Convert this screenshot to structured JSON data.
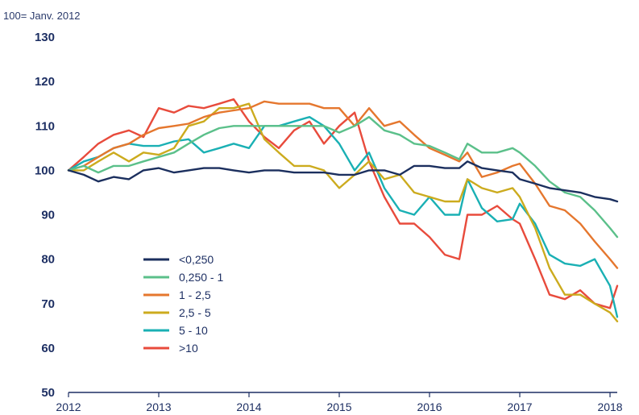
{
  "chart_data": {
    "type": "line",
    "unit_note": "100= Janv. 2012",
    "ylim": [
      50,
      130
    ],
    "yticks": [
      50,
      60,
      70,
      80,
      90,
      100,
      110,
      120,
      130
    ],
    "xlim": [
      2012,
      2018.08
    ],
    "xticks": [
      "2012",
      "2013",
      "2014",
      "2015",
      "2016",
      "2017",
      "2018"
    ],
    "grid": false,
    "legend_position": "bottom-left",
    "series": [
      {
        "name": "<0,250",
        "color": "#1b2f5e",
        "x": [
          2012,
          2012.17,
          2012.33,
          2012.5,
          2012.67,
          2012.83,
          2013,
          2013.17,
          2013.33,
          2013.5,
          2013.67,
          2013.83,
          2014,
          2014.17,
          2014.33,
          2014.5,
          2014.67,
          2014.83,
          2015,
          2015.17,
          2015.33,
          2015.5,
          2015.67,
          2015.83,
          2016,
          2016.17,
          2016.33,
          2016.42,
          2016.58,
          2016.75,
          2016.92,
          2017,
          2017.17,
          2017.33,
          2017.5,
          2017.67,
          2017.83,
          2018,
          2018.08
        ],
        "y": [
          100,
          99,
          97.5,
          98.5,
          98,
          100,
          100.5,
          99.5,
          100,
          100.5,
          100.5,
          100,
          99.5,
          100,
          100,
          99.5,
          99.5,
          99.5,
          99,
          99,
          100,
          100,
          99,
          101,
          101,
          100.5,
          100.5,
          102,
          100.5,
          100,
          99.5,
          98,
          97,
          96,
          95.5,
          95,
          94,
          93.5,
          93
        ]
      },
      {
        "name": "0,250  - 1",
        "color": "#5bc08a",
        "x": [
          2012,
          2012.17,
          2012.33,
          2012.5,
          2012.67,
          2012.83,
          2013,
          2013.17,
          2013.33,
          2013.5,
          2013.67,
          2013.83,
          2014,
          2014.17,
          2014.33,
          2014.5,
          2014.67,
          2014.83,
          2015,
          2015.17,
          2015.33,
          2015.5,
          2015.67,
          2015.83,
          2016,
          2016.17,
          2016.33,
          2016.42,
          2016.58,
          2016.75,
          2016.92,
          2017,
          2017.17,
          2017.33,
          2017.5,
          2017.67,
          2017.83,
          2018,
          2018.08
        ],
        "y": [
          100,
          101,
          99.5,
          101,
          101,
          102,
          103,
          104,
          106,
          108,
          109.5,
          110,
          110,
          110,
          110,
          110,
          110,
          110,
          108.5,
          110,
          112,
          109,
          108,
          106,
          105.5,
          104,
          102.5,
          106,
          104,
          104,
          105,
          104,
          101,
          97.5,
          95,
          94,
          91,
          87,
          85
        ]
      },
      {
        "name": "1 - 2,5",
        "color": "#e5772e",
        "x": [
          2012,
          2012.17,
          2012.33,
          2012.5,
          2012.67,
          2012.83,
          2013,
          2013.17,
          2013.33,
          2013.5,
          2013.67,
          2013.83,
          2014,
          2014.17,
          2014.33,
          2014.5,
          2014.67,
          2014.83,
          2015,
          2015.17,
          2015.33,
          2015.5,
          2015.67,
          2015.83,
          2016,
          2016.17,
          2016.33,
          2016.42,
          2016.58,
          2016.75,
          2016.92,
          2017,
          2017.17,
          2017.33,
          2017.5,
          2017.67,
          2017.83,
          2018,
          2018.08
        ],
        "y": [
          100,
          101,
          103,
          105,
          106,
          108,
          109.5,
          110,
          110.5,
          112,
          113,
          113.5,
          114,
          115.5,
          115,
          115,
          115,
          114,
          114,
          110,
          114,
          110,
          111,
          108,
          105,
          103.5,
          102,
          104,
          98.5,
          99.5,
          101,
          101.5,
          97,
          92,
          91,
          88,
          84,
          80,
          78
        ]
      },
      {
        "name": "2,5  - 5",
        "color": "#ccab1e",
        "x": [
          2012,
          2012.17,
          2012.33,
          2012.5,
          2012.67,
          2012.83,
          2013,
          2013.17,
          2013.33,
          2013.5,
          2013.67,
          2013.83,
          2014,
          2014.17,
          2014.33,
          2014.5,
          2014.67,
          2014.83,
          2015,
          2015.17,
          2015.33,
          2015.5,
          2015.67,
          2015.83,
          2016,
          2016.17,
          2016.33,
          2016.42,
          2016.58,
          2016.75,
          2016.92,
          2017,
          2017.17,
          2017.33,
          2017.5,
          2017.67,
          2017.83,
          2018,
          2018.08
        ],
        "y": [
          100,
          100,
          102,
          104,
          102,
          104,
          103.5,
          105,
          110,
          111,
          114,
          114,
          115,
          107,
          104,
          101,
          101,
          100,
          96,
          99,
          102,
          98,
          99,
          95,
          94,
          93,
          93,
          98,
          96,
          95,
          96,
          94,
          87,
          78,
          72,
          72,
          70,
          68,
          66
        ]
      },
      {
        "name": "5 - 10",
        "color": "#1ab0b4",
        "x": [
          2012,
          2012.17,
          2012.33,
          2012.5,
          2012.67,
          2012.83,
          2013,
          2013.17,
          2013.33,
          2013.5,
          2013.67,
          2013.83,
          2014,
          2014.17,
          2014.33,
          2014.5,
          2014.67,
          2014.83,
          2015,
          2015.17,
          2015.33,
          2015.5,
          2015.67,
          2015.83,
          2016,
          2016.17,
          2016.33,
          2016.42,
          2016.58,
          2016.75,
          2016.92,
          2017,
          2017.17,
          2017.33,
          2017.5,
          2017.67,
          2017.83,
          2018,
          2018.08
        ],
        "y": [
          100,
          102,
          103,
          105,
          106,
          105.5,
          105.5,
          106.5,
          107,
          104,
          105,
          106,
          105,
          110,
          110,
          111,
          112,
          110,
          106,
          100,
          104,
          96,
          91,
          90,
          94,
          90,
          90,
          98,
          91.5,
          88.5,
          89,
          92.5,
          88,
          81,
          79,
          78.5,
          80,
          74,
          67
        ]
      },
      {
        "name": ">10",
        "color": "#e84b3c",
        "x": [
          2012,
          2012.17,
          2012.33,
          2012.5,
          2012.67,
          2012.83,
          2013,
          2013.17,
          2013.33,
          2013.5,
          2013.67,
          2013.83,
          2014,
          2014.17,
          2014.33,
          2014.5,
          2014.67,
          2014.83,
          2015,
          2015.17,
          2015.33,
          2015.5,
          2015.67,
          2015.83,
          2016,
          2016.17,
          2016.33,
          2016.42,
          2016.58,
          2016.75,
          2016.92,
          2017,
          2017.17,
          2017.33,
          2017.5,
          2017.67,
          2017.83,
          2018,
          2018.08
        ],
        "y": [
          100,
          103,
          106,
          108,
          109,
          107.5,
          114,
          113,
          114.5,
          114,
          115,
          116,
          111,
          107.5,
          105,
          109,
          111,
          106,
          110,
          113,
          102,
          94,
          88,
          88,
          85,
          81,
          80,
          90,
          90,
          92,
          89,
          88,
          80,
          72,
          71,
          73,
          70,
          69,
          74
        ]
      }
    ]
  }
}
